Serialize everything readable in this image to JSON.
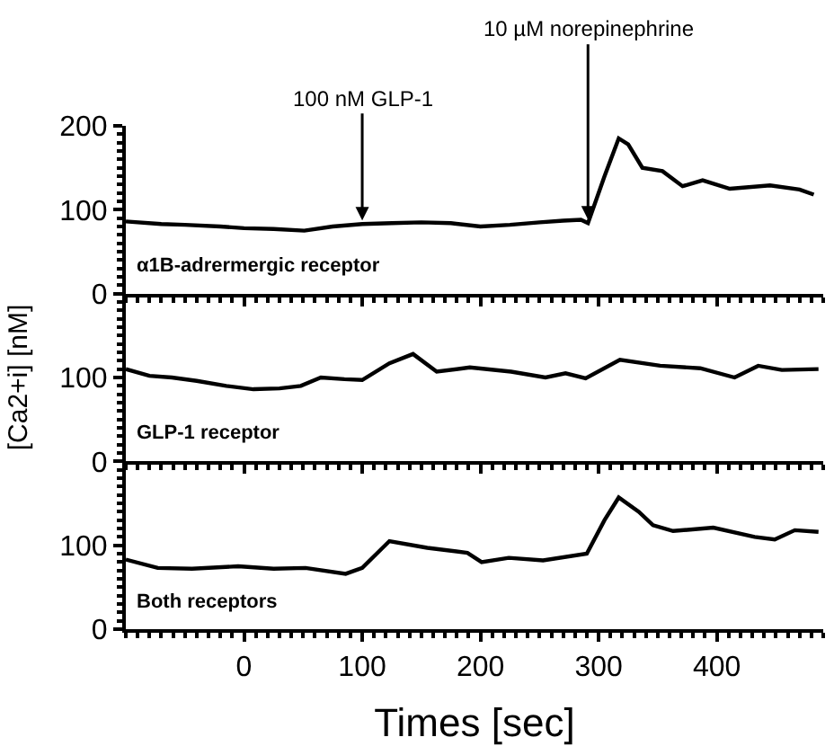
{
  "chart_data": [
    {
      "type": "line",
      "x": [
        -100,
        -70,
        -50,
        -20,
        0,
        25,
        51,
        75,
        100,
        125,
        150,
        175,
        200,
        225,
        250,
        270,
        285,
        291,
        305,
        317,
        325,
        337,
        354,
        371,
        388,
        411,
        445,
        470,
        482
      ],
      "series": [
        {
          "color": "#000000",
          "values": [
            86,
            83,
            82,
            80,
            78,
            77,
            75,
            80,
            83,
            84,
            85,
            84,
            80,
            82,
            85,
            87,
            88,
            84,
            140,
            185,
            178,
            150,
            146,
            128,
            135,
            125,
            129,
            124,
            118
          ]
        }
      ],
      "xlim": [
        -100,
        490
      ],
      "ylim": [
        0,
        200
      ],
      "yticks": [
        0,
        100,
        200
      ],
      "xticks": [
        0,
        100,
        200,
        300,
        400
      ],
      "tick_labels": "y",
      "grid": false,
      "annotations": [
        {
          "text": "100 nM GLP-1",
          "x": 100,
          "y": 83
        },
        {
          "text": "10 µM norepinephrine",
          "x": 291,
          "y": 84
        },
        "α1B-adrermergic receptor"
      ]
    },
    {
      "type": "line",
      "x": [
        -100,
        -80,
        -61,
        -40,
        -15,
        8,
        30,
        48,
        65,
        85,
        100,
        123,
        143,
        163,
        191,
        226,
        255,
        272,
        289,
        318,
        352,
        386,
        415,
        435,
        455,
        486
      ],
      "series": [
        {
          "color": "#000000",
          "values": [
            110,
            102,
            100,
            96,
            90,
            86,
            87,
            90,
            100,
            98,
            97,
            117,
            128,
            107,
            112,
            107,
            100,
            105,
            99,
            121,
            114,
            111,
            100,
            114,
            109,
            110
          ]
        }
      ],
      "xlim": [
        -100,
        490
      ],
      "ylim": [
        0,
        200
      ],
      "yticks": [
        0,
        100
      ],
      "xticks": [
        0,
        100,
        200,
        300,
        400
      ],
      "tick_labels": "y",
      "grid": false,
      "ylabel": "[Ca2+i] [nM]",
      "annotations": [
        "GLP-1 receptor"
      ]
    },
    {
      "type": "line",
      "x": [
        -100,
        -73,
        -44,
        -5,
        25,
        52,
        86,
        100,
        123,
        155,
        189,
        201,
        224,
        253,
        290,
        305,
        317,
        334,
        346,
        363,
        397,
        432,
        449,
        466,
        486
      ],
      "series": [
        {
          "color": "#000000",
          "values": [
            83,
            73,
            72,
            75,
            72,
            73,
            66,
            73,
            105,
            97,
            91,
            80,
            85,
            82,
            90,
            130,
            157,
            140,
            124,
            117,
            121,
            110,
            107,
            118,
            116
          ]
        }
      ],
      "xlim": [
        -100,
        490
      ],
      "ylim": [
        0,
        200
      ],
      "yticks": [
        0,
        100
      ],
      "xticks": [
        0,
        100,
        200,
        300,
        400
      ],
      "grid": false,
      "xlabel": "Times [sec]",
      "annotations": [
        "Both receptors"
      ]
    }
  ]
}
